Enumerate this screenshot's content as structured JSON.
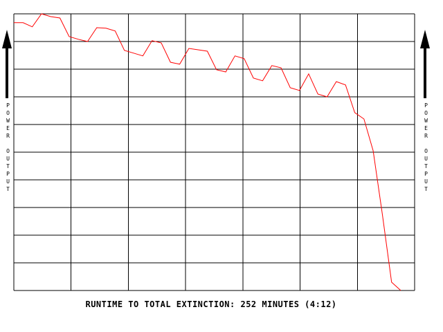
{
  "chart_data": {
    "type": "line",
    "y_label": "POWER OUTPUT",
    "caption": "RUNTIME TO TOTAL EXTINCTION: 252 MINUTES (4:12)",
    "x": [
      0,
      6,
      12,
      18,
      24,
      30,
      36,
      42,
      48,
      54,
      60,
      66,
      72,
      78,
      84,
      90,
      96,
      102,
      108,
      114,
      120,
      126,
      132,
      138,
      144,
      150,
      156,
      162,
      168,
      174,
      180,
      186,
      192,
      198,
      204,
      210,
      216,
      222,
      228,
      234,
      240,
      246,
      252
    ],
    "series": [
      {
        "color": "#ff0000",
        "values": [
          96.8,
          96.8,
          95.3,
          100,
          99,
          98.5,
          91.8,
          90.8,
          90,
          95,
          94.8,
          93.8,
          86.8,
          85.8,
          84.8,
          90.3,
          89.5,
          82.5,
          81.8,
          87.5,
          87,
          86.5,
          79.8,
          79,
          84.8,
          83.8,
          76.8,
          75.8,
          81.3,
          80.5,
          73.3,
          72.3,
          78.3,
          71,
          70,
          75.5,
          74.3,
          64.3,
          62,
          50.5,
          27.5,
          3,
          0
        ]
      }
    ],
    "xlim": [
      0,
      261
    ],
    "ylim": [
      0,
      100
    ],
    "grid": {
      "rows": 10,
      "columns": 7
    }
  }
}
